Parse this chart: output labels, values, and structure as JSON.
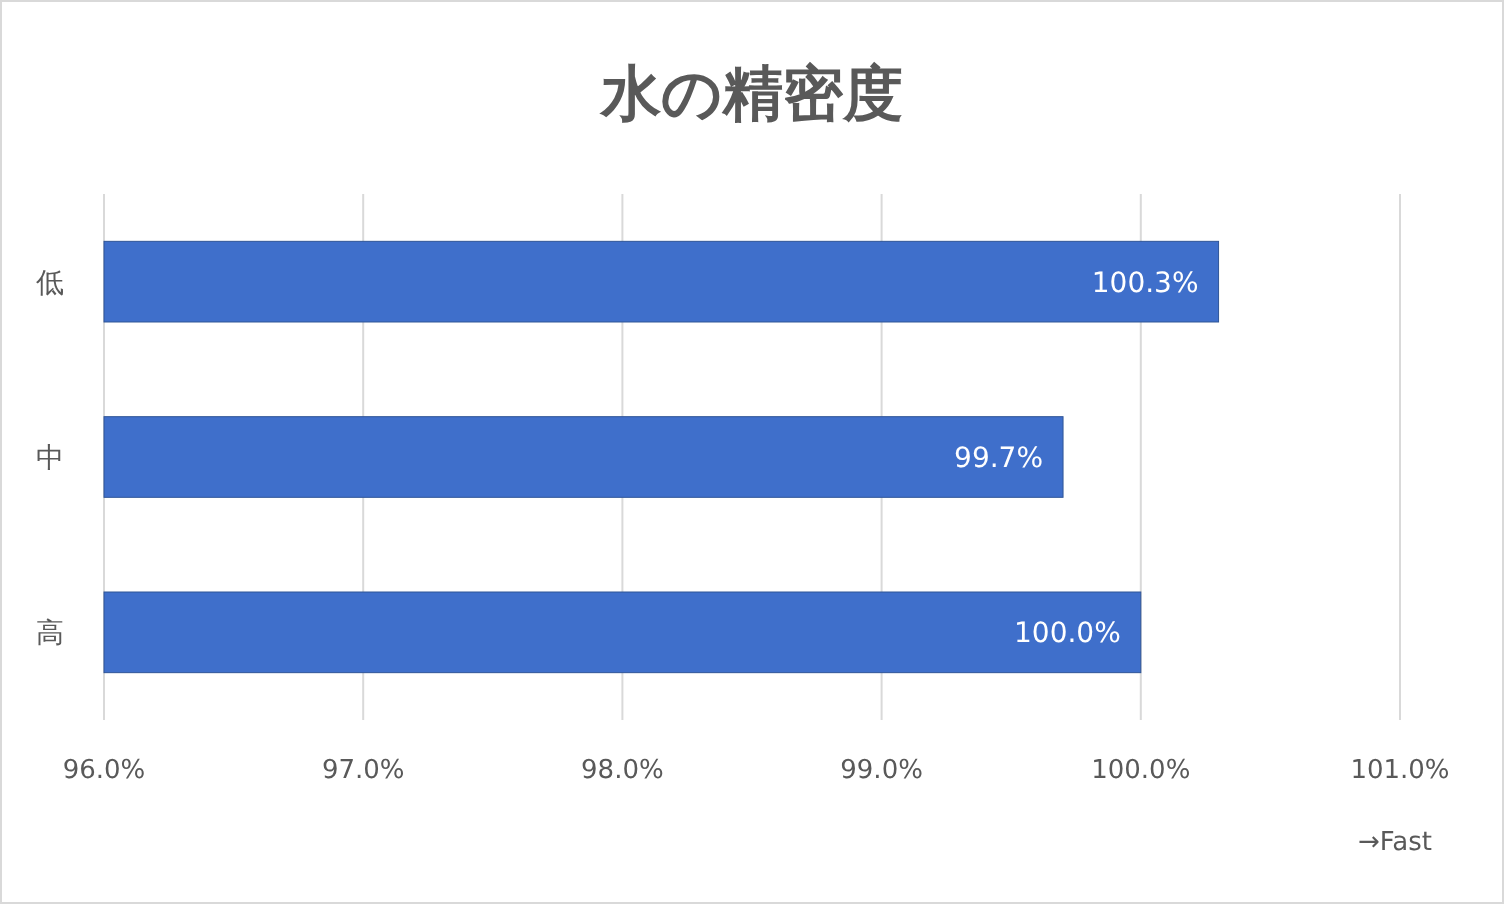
{
  "chart_data": {
    "type": "bar",
    "orientation": "horizontal",
    "title": "水の精密度",
    "xlabel": "→Fast",
    "categories": [
      "低",
      "中",
      "高"
    ],
    "values": [
      100.3,
      99.7,
      100.0
    ],
    "value_labels": [
      "100.3%",
      "99.7%",
      "100.0%"
    ],
    "color": "#3f6fcb",
    "xlim": [
      96,
      101
    ],
    "xticks": [
      {
        "value": 96,
        "label": "96.0%"
      },
      {
        "value": 97,
        "label": "97.0%"
      },
      {
        "value": 98,
        "label": "98.0%"
      },
      {
        "value": 99,
        "label": "99.0%"
      },
      {
        "value": 100,
        "label": "100.0%"
      },
      {
        "value": 101,
        "label": "101.0%"
      }
    ],
    "grid": "x"
  }
}
